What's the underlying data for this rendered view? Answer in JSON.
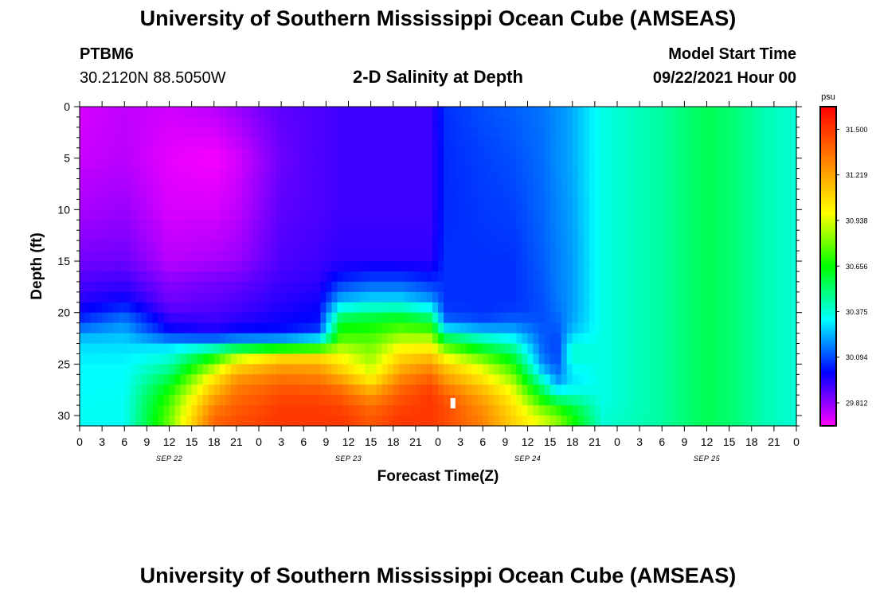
{
  "header": {
    "title": "University of Southern Mississippi Ocean Cube (AMSEAS)",
    "station": "PTBM6",
    "coords": "30.2120N  88.5050W",
    "plot_title": "2-D Salinity at Depth",
    "start_label": "Model Start Time",
    "start_value": "09/22/2021 Hour 00"
  },
  "footer": {
    "title": "University of Southern Mississippi Ocean Cube (AMSEAS)"
  },
  "chart_data": {
    "type": "heatmap",
    "title": "2-D Salinity at Depth",
    "xlabel": "Forecast Time(Z)",
    "ylabel": "Depth (ft)",
    "x_hours": [
      0,
      96
    ],
    "x_tick_step_hours": 3,
    "x_tick_labels": [
      "0",
      "3",
      "6",
      "9",
      "12",
      "15",
      "18",
      "21",
      "0",
      "3",
      "6",
      "9",
      "12",
      "15",
      "18",
      "21",
      "0",
      "3",
      "6",
      "9",
      "12",
      "15",
      "18",
      "21",
      "0",
      "3",
      "6",
      "9",
      "12",
      "15",
      "18",
      "21",
      "0"
    ],
    "date_labels": [
      {
        "label": "SEP 22",
        "hour": 12
      },
      {
        "label": "SEP 23",
        "hour": 36
      },
      {
        "label": "SEP 24",
        "hour": 60
      },
      {
        "label": "SEP 25",
        "hour": 84
      }
    ],
    "ylim": [
      31,
      0
    ],
    "y_ticks": [
      0,
      5,
      10,
      15,
      20,
      25,
      30
    ],
    "colorbar": {
      "unit": "psu",
      "range": [
        29.67,
        31.64
      ],
      "ticks": [
        "31.500",
        "31.219",
        "30.938",
        "30.656",
        "30.375",
        "30.094",
        "29.812"
      ],
      "colors": [
        "#ff00ff",
        "#0000ff",
        "#00ffff",
        "#00ff00",
        "#ffff00",
        "#ff8000",
        "#ff0000"
      ]
    },
    "salinity_profiles_psu": {
      "depths_ft": [
        0,
        5,
        10,
        15,
        17,
        19,
        20,
        21,
        22,
        23,
        24,
        25,
        26,
        27,
        28,
        29,
        30,
        31
      ],
      "columns": [
        {
          "hour": 0,
          "values": [
            29.72,
            29.74,
            29.78,
            29.85,
            29.9,
            29.95,
            30.0,
            30.08,
            30.2,
            30.28,
            30.3,
            30.32,
            30.33,
            30.33,
            30.33,
            30.34,
            30.34,
            30.34
          ]
        },
        {
          "hour": 6,
          "values": [
            29.75,
            29.76,
            29.8,
            29.86,
            29.92,
            30.0,
            30.1,
            30.18,
            30.23,
            30.28,
            30.3,
            30.32,
            30.33,
            30.33,
            30.34,
            30.34,
            30.34,
            30.34
          ]
        },
        {
          "hour": 12,
          "values": [
            29.73,
            29.7,
            29.72,
            29.76,
            29.82,
            29.86,
            29.9,
            29.96,
            30.02,
            30.25,
            30.35,
            30.42,
            30.52,
            30.62,
            30.7,
            30.75,
            30.78,
            30.8
          ]
        },
        {
          "hour": 18,
          "values": [
            29.76,
            29.68,
            29.72,
            29.78,
            29.85,
            29.88,
            29.9,
            29.93,
            29.98,
            30.25,
            30.6,
            30.8,
            31.0,
            31.1,
            31.2,
            31.3,
            31.35,
            31.4
          ]
        },
        {
          "hour": 21,
          "values": [
            29.8,
            29.72,
            29.75,
            29.8,
            29.86,
            29.9,
            29.92,
            29.96,
            30.02,
            30.3,
            30.8,
            31.05,
            31.2,
            31.3,
            31.35,
            31.4,
            31.42,
            31.45
          ]
        },
        {
          "hour": 27,
          "values": [
            29.88,
            29.86,
            29.88,
            29.9,
            29.92,
            29.95,
            29.97,
            29.99,
            30.02,
            30.35,
            31.0,
            31.2,
            31.3,
            31.4,
            31.45,
            31.48,
            31.5,
            31.5
          ]
        },
        {
          "hour": 32,
          "values": [
            29.9,
            29.9,
            29.9,
            29.92,
            29.94,
            29.98,
            30.0,
            30.02,
            30.1,
            30.45,
            31.0,
            31.2,
            31.28,
            31.38,
            31.45,
            31.48,
            31.5,
            31.5
          ]
        },
        {
          "hour": 35,
          "values": [
            29.92,
            29.92,
            29.92,
            29.94,
            30.05,
            30.25,
            30.45,
            30.62,
            30.7,
            30.82,
            30.95,
            31.05,
            31.15,
            31.3,
            31.4,
            31.45,
            31.5,
            31.5
          ]
        },
        {
          "hour": 39,
          "values": [
            29.92,
            29.92,
            29.92,
            29.94,
            30.1,
            30.3,
            30.5,
            30.65,
            30.7,
            30.8,
            30.82,
            30.9,
            30.95,
            31.1,
            31.25,
            31.35,
            31.4,
            31.42
          ]
        },
        {
          "hour": 43,
          "values": [
            29.92,
            29.92,
            29.92,
            29.94,
            30.1,
            30.3,
            30.52,
            30.7,
            30.8,
            30.95,
            31.05,
            31.15,
            31.25,
            31.35,
            31.42,
            31.45,
            31.5,
            31.5
          ]
        },
        {
          "hour": 47,
          "values": [
            29.92,
            29.92,
            29.92,
            29.94,
            30.05,
            30.22,
            30.42,
            30.62,
            30.8,
            30.95,
            31.1,
            31.25,
            31.35,
            31.45,
            31.5,
            31.5,
            31.5,
            31.5
          ]
        },
        {
          "hour": 49,
          "values": [
            30.06,
            30.05,
            30.05,
            30.06,
            30.06,
            30.06,
            30.08,
            30.15,
            30.4,
            30.7,
            30.9,
            31.1,
            31.2,
            31.3,
            31.4,
            31.45,
            31.45,
            31.45
          ]
        },
        {
          "hour": 54,
          "values": [
            30.1,
            30.08,
            30.07,
            30.06,
            30.06,
            30.06,
            30.06,
            30.1,
            30.3,
            30.5,
            30.7,
            30.9,
            31.0,
            31.1,
            31.2,
            31.25,
            31.3,
            31.3
          ]
        },
        {
          "hour": 58,
          "values": [
            30.12,
            30.1,
            30.08,
            30.06,
            30.06,
            30.06,
            30.08,
            30.14,
            30.25,
            30.4,
            30.55,
            30.68,
            30.8,
            30.9,
            31.0,
            31.05,
            31.1,
            31.1
          ]
        },
        {
          "hour": 62,
          "values": [
            30.15,
            30.14,
            30.13,
            30.12,
            30.11,
            30.1,
            30.1,
            30.1,
            30.12,
            30.12,
            30.14,
            30.18,
            30.3,
            30.45,
            30.6,
            30.75,
            30.9,
            30.95
          ]
        },
        {
          "hour": 64,
          "values": [
            30.18,
            30.18,
            30.17,
            30.16,
            30.16,
            30.15,
            30.14,
            30.12,
            30.1,
            30.08,
            30.08,
            30.1,
            30.15,
            30.22,
            30.4,
            30.65,
            30.8,
            30.85
          ]
        },
        {
          "hour": 66,
          "values": [
            30.22,
            30.22,
            30.21,
            30.2,
            30.2,
            30.2,
            30.2,
            30.22,
            30.25,
            30.35,
            30.4,
            30.35,
            30.3,
            30.3,
            30.4,
            30.55,
            30.65,
            30.7
          ]
        },
        {
          "hour": 70,
          "values": [
            30.36,
            30.36,
            30.36,
            30.36,
            30.36,
            30.36,
            30.36,
            30.36,
            30.36,
            30.36,
            30.36,
            30.36,
            30.36,
            30.36,
            30.36,
            30.36,
            30.38,
            30.38
          ]
        },
        {
          "hour": 78,
          "values": [
            30.45,
            30.45,
            30.45,
            30.45,
            30.45,
            30.45,
            30.45,
            30.45,
            30.45,
            30.45,
            30.45,
            30.45,
            30.45,
            30.45,
            30.45,
            30.45,
            30.45,
            30.45
          ]
        },
        {
          "hour": 84,
          "values": [
            30.55,
            30.55,
            30.55,
            30.55,
            30.55,
            30.55,
            30.55,
            30.55,
            30.55,
            30.55,
            30.55,
            30.55,
            30.55,
            30.55,
            30.55,
            30.55,
            30.55,
            30.55
          ]
        },
        {
          "hour": 88,
          "values": [
            30.5,
            30.5,
            30.5,
            30.5,
            30.5,
            30.5,
            30.5,
            30.5,
            30.5,
            30.5,
            30.5,
            30.5,
            30.5,
            30.5,
            30.5,
            30.5,
            30.5,
            30.5
          ]
        },
        {
          "hour": 92,
          "values": [
            30.42,
            30.42,
            30.42,
            30.42,
            30.42,
            30.42,
            30.42,
            30.42,
            30.42,
            30.42,
            30.42,
            30.42,
            30.42,
            30.42,
            30.42,
            30.42,
            30.42,
            30.42
          ]
        },
        {
          "hour": 96,
          "values": [
            30.38,
            30.38,
            30.38,
            30.38,
            30.38,
            30.38,
            30.38,
            30.38,
            30.38,
            30.38,
            30.38,
            30.38,
            30.38,
            30.38,
            30.38,
            30.38,
            30.38,
            30.38
          ]
        }
      ]
    }
  }
}
